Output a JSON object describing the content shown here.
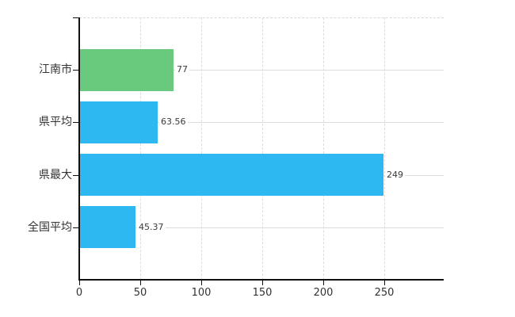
{
  "chart_data": {
    "type": "bar",
    "orientation": "horizontal",
    "title": "",
    "xlabel": "",
    "ylabel": "",
    "categories": [
      "江南市",
      "県平均",
      "県最大",
      "全国平均"
    ],
    "values": [
      77,
      63.56,
      249,
      45.37
    ],
    "value_labels": [
      "77",
      "63.56",
      "249",
      "45.37"
    ],
    "bar_colors": [
      "#69ca7d",
      "#2db8f1",
      "#2db8f1",
      "#2db8f1"
    ],
    "x_ticks": [
      0,
      50,
      100,
      150,
      200,
      250
    ],
    "x_tick_labels": [
      "0",
      "50",
      "100",
      "150",
      "200",
      "250"
    ],
    "xlim": [
      0,
      299
    ],
    "grid": true,
    "legend": false,
    "styles": {
      "background": "#ffffff",
      "grid_color": "#dcdcdc",
      "axis_color": "#111111",
      "bar_blue": "#2db8f1",
      "bar_green": "#69ca7d",
      "text_color": "#333333",
      "value_text_color": "#3a3a3a"
    }
  }
}
